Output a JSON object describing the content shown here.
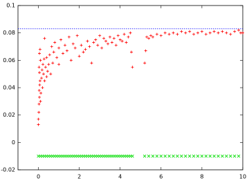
{
  "chart_data": {
    "type": "scatter",
    "xlim": [
      -1,
      10
    ],
    "xticks": [
      0,
      2,
      4,
      6,
      8,
      10
    ],
    "ylim": [
      -0.02,
      0.1
    ],
    "yticks": [
      -0.02,
      0,
      0.02,
      0.04,
      0.06,
      0.08,
      0.1
    ],
    "hline": {
      "value": 0.083,
      "color": "#0000ff"
    },
    "series": [
      {
        "color": "#ff0000",
        "marker": "plus",
        "x": [
          0.0,
          0.0,
          0.02,
          0.03,
          0.05,
          0.04,
          0.06,
          0.08,
          0.05,
          0.03,
          0.1,
          0.12,
          0.1,
          0.05,
          0.08,
          0.15,
          0.18,
          0.2,
          0.22,
          0.25,
          0.3,
          0.28,
          0.35,
          0.4,
          0.4,
          0.45,
          0.5,
          0.3,
          0.55,
          0.6,
          0.65,
          0.7,
          0.75,
          0.8,
          0.9,
          1.0,
          1.0,
          1.1,
          1.2,
          1.3,
          1.4,
          1.5,
          1.6,
          1.7,
          1.8,
          1.9,
          2.0,
          2.1,
          2.2,
          2.3,
          2.4,
          2.5,
          2.6,
          2.7,
          2.8,
          2.9,
          3.0,
          3.1,
          3.2,
          3.3,
          3.4,
          3.5,
          3.6,
          3.7,
          3.8,
          3.9,
          4.0,
          4.1,
          4.2,
          4.3,
          4.4,
          4.5,
          4.55,
          4.6,
          5.2,
          5.25,
          5.3,
          5.4,
          5.5,
          5.6,
          5.8,
          6.0,
          6.2,
          6.4,
          6.6,
          6.8,
          7.0,
          7.2,
          7.4,
          7.6,
          7.8,
          8.0,
          8.2,
          8.4,
          8.6,
          8.8,
          9.0,
          9.2,
          9.4,
          9.6,
          9.8,
          9.9,
          10.0
        ],
        "y": [
          0.013,
          0.017,
          0.022,
          0.028,
          0.033,
          0.038,
          0.042,
          0.045,
          0.051,
          0.055,
          0.03,
          0.036,
          0.06,
          0.065,
          0.068,
          0.047,
          0.053,
          0.04,
          0.057,
          0.05,
          0.045,
          0.061,
          0.055,
          0.048,
          0.062,
          0.052,
          0.057,
          0.076,
          0.064,
          0.05,
          0.07,
          0.058,
          0.066,
          0.073,
          0.062,
          0.069,
          0.057,
          0.075,
          0.065,
          0.071,
          0.067,
          0.077,
          0.06,
          0.072,
          0.069,
          0.078,
          0.063,
          0.071,
          0.066,
          0.068,
          0.074,
          0.07,
          0.058,
          0.073,
          0.075,
          0.071,
          0.078,
          0.069,
          0.076,
          0.074,
          0.072,
          0.077,
          0.073,
          0.076,
          0.071,
          0.078,
          0.075,
          0.074,
          0.079,
          0.073,
          0.077,
          0.08,
          0.066,
          0.055,
          0.058,
          0.067,
          0.077,
          0.076,
          0.078,
          0.077,
          0.079,
          0.078,
          0.08,
          0.079,
          0.08,
          0.079,
          0.081,
          0.08,
          0.081,
          0.079,
          0.08,
          0.081,
          0.079,
          0.08,
          0.081,
          0.08,
          0.081,
          0.08,
          0.079,
          0.081,
          0.082,
          0.08,
          0.08
        ]
      },
      {
        "color": "#00dd00",
        "marker": "cross",
        "x": [
          0,
          0.1,
          0.2,
          0.3,
          0.4,
          0.5,
          0.6,
          0.7,
          0.8,
          0.9,
          1,
          1.1,
          1.2,
          1.3,
          1.4,
          1.5,
          1.6,
          1.7,
          1.8,
          1.9,
          2,
          2.1,
          2.2,
          2.3,
          2.4,
          2.5,
          2.6,
          2.7,
          2.8,
          2.9,
          3,
          3.1,
          3.2,
          3.3,
          3.4,
          3.5,
          3.6,
          3.7,
          3.8,
          3.9,
          4,
          4.1,
          4.2,
          4.3,
          4.4,
          4.5,
          4.6,
          5.2,
          5.4,
          5.6,
          5.8,
          6,
          6.2,
          6.4,
          6.6,
          6.8,
          7,
          7.2,
          7.4,
          7.6,
          7.8,
          8,
          8.2,
          8.4,
          8.6,
          8.8,
          9,
          9.2,
          9.4,
          9.6,
          9.8
        ],
        "y": [
          -0.01,
          -0.01,
          -0.01,
          -0.01,
          -0.01,
          -0.01,
          -0.01,
          -0.01,
          -0.01,
          -0.01,
          -0.01,
          -0.01,
          -0.01,
          -0.01,
          -0.01,
          -0.01,
          -0.01,
          -0.01,
          -0.01,
          -0.01,
          -0.01,
          -0.01,
          -0.01,
          -0.01,
          -0.01,
          -0.01,
          -0.01,
          -0.01,
          -0.01,
          -0.01,
          -0.01,
          -0.01,
          -0.01,
          -0.01,
          -0.01,
          -0.01,
          -0.01,
          -0.01,
          -0.01,
          -0.01,
          -0.01,
          -0.01,
          -0.01,
          -0.01,
          -0.01,
          -0.01,
          -0.01,
          -0.01,
          -0.01,
          -0.01,
          -0.01,
          -0.01,
          -0.01,
          -0.01,
          -0.01,
          -0.01,
          -0.01,
          -0.01,
          -0.01,
          -0.01,
          -0.01,
          -0.01,
          -0.01,
          -0.01,
          -0.01,
          -0.01,
          -0.01,
          -0.01,
          -0.01,
          -0.01,
          -0.01
        ]
      }
    ]
  }
}
